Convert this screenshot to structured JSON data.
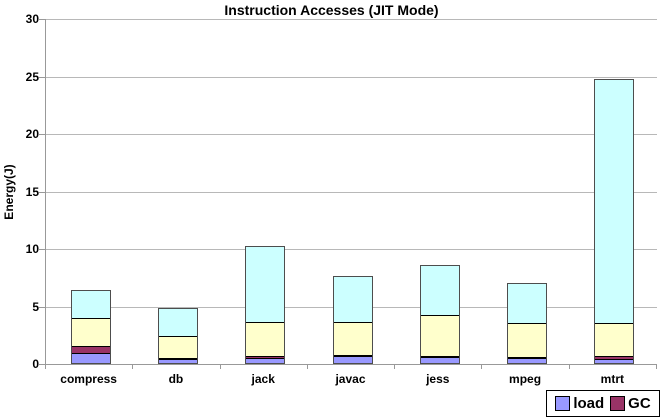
{
  "title": "Instruction Accesses (JIT Mode)",
  "y_axis": {
    "label": "Energy(J)",
    "tick_values": [
      0,
      5,
      10,
      15,
      20,
      25,
      30
    ],
    "min": 0,
    "max": 30
  },
  "x_axis": {
    "categories": [
      "compress",
      "db",
      "jack",
      "javac",
      "jess",
      "mpeg",
      "mtrt"
    ]
  },
  "legend": {
    "items": [
      {
        "label": "load",
        "color": "#9999ff"
      },
      {
        "label": "GC",
        "color": "#993366"
      }
    ],
    "position": "bottom-right"
  },
  "colors": {
    "load": "#9999ff",
    "gc": "#993366",
    "unlabeled_yellow": "#ffffcc",
    "unlabeled_cyan": "#ccffff",
    "gridline": "#b8b8b8",
    "axis": "#999999",
    "background": "#ffffff"
  },
  "chart_data": {
    "type": "bar",
    "stacked": true,
    "title": "Instruction Accesses (JIT Mode)",
    "xlabel": "",
    "ylabel": "Energy(J)",
    "ylim": [
      0,
      30
    ],
    "grid": true,
    "legend_position": "bottom-right",
    "categories": [
      "compress",
      "db",
      "jack",
      "javac",
      "jess",
      "mpeg",
      "mtrt"
    ],
    "series": [
      {
        "key": "load",
        "name": "load",
        "legend_visible": true,
        "color": "#9999ff",
        "values": [
          0.9,
          0.35,
          0.4,
          0.65,
          0.55,
          0.4,
          0.35
        ]
      },
      {
        "key": "gc",
        "name": "GC",
        "legend_visible": true,
        "color": "#993366",
        "values": [
          0.6,
          0.05,
          0.2,
          0.05,
          0.1,
          0.1,
          0.25
        ]
      },
      {
        "key": "unlabeled-yellow",
        "name": "",
        "legend_visible": false,
        "color": "#ffffcc",
        "values": [
          2.4,
          1.95,
          3.0,
          2.85,
          3.55,
          3.0,
          2.9
        ]
      },
      {
        "key": "unlabeled-cyan",
        "name": "",
        "legend_visible": false,
        "color": "#ccffff",
        "values": [
          2.4,
          2.35,
          6.5,
          3.95,
          4.2,
          3.4,
          21.1
        ]
      }
    ],
    "totals": [
      6.3,
      4.7,
      10.1,
      7.5,
      8.4,
      6.9,
      24.6
    ]
  }
}
